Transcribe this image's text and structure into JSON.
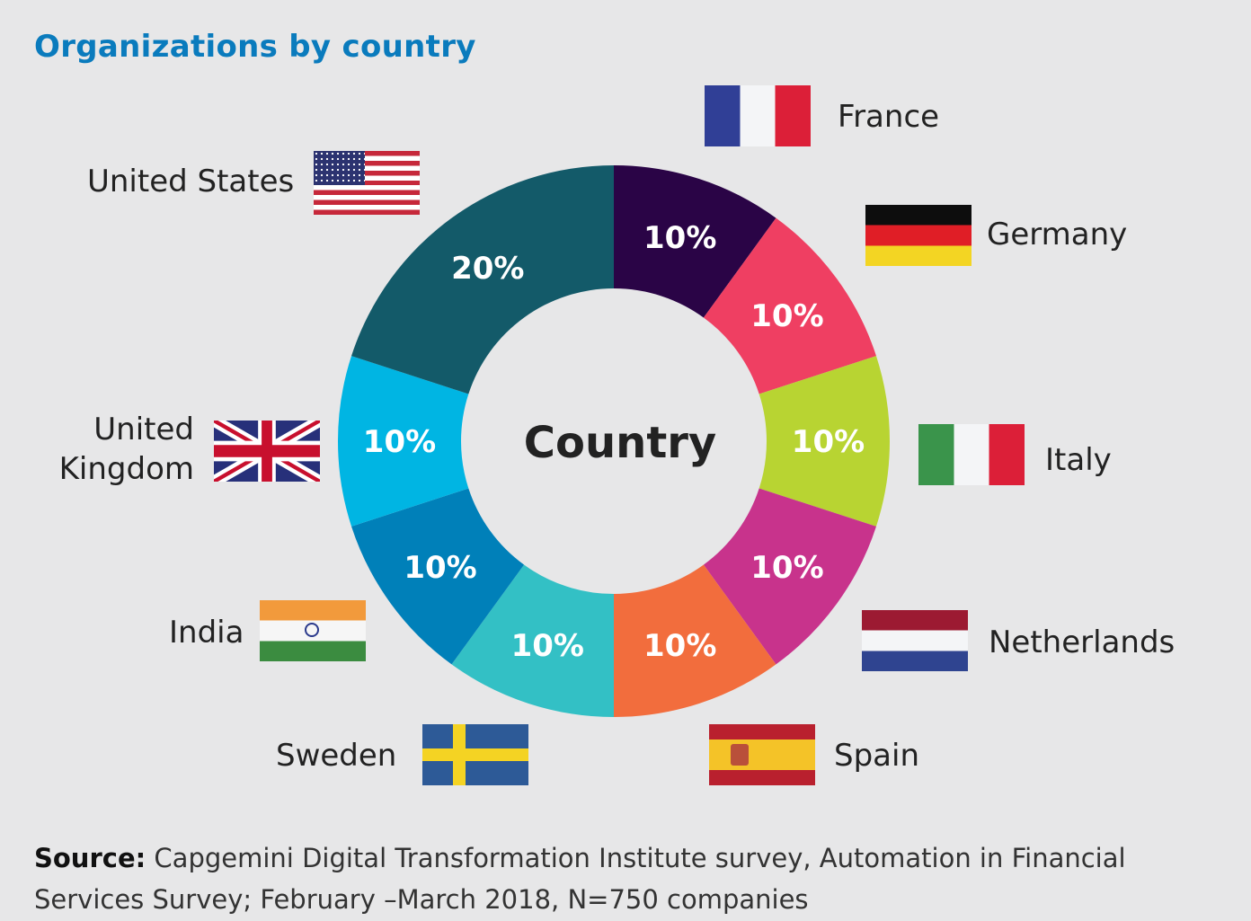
{
  "chart_data": {
    "type": "pie",
    "title": "Organizations by country",
    "center_label": "Country",
    "slices": [
      {
        "label": "France",
        "value": 10,
        "display": "10%",
        "color": "#2a0446"
      },
      {
        "label": "Germany",
        "value": 10,
        "display": "10%",
        "color": "#ef3f62"
      },
      {
        "label": "Italy",
        "value": 10,
        "display": "10%",
        "color": "#b8d432"
      },
      {
        "label": "Netherlands",
        "value": 10,
        "display": "10%",
        "color": "#c8338c"
      },
      {
        "label": "Spain",
        "value": 10,
        "display": "10%",
        "color": "#f26d3d"
      },
      {
        "label": "Sweden",
        "value": 10,
        "display": "10%",
        "color": "#33c0c5"
      },
      {
        "label": "India",
        "value": 10,
        "display": "10%",
        "color": "#0080b9"
      },
      {
        "label": "United Kingdom",
        "value": 10,
        "display": "10%",
        "color": "#00b5e3"
      },
      {
        "label": "United States",
        "value": 20,
        "display": "20%",
        "color": "#135a69"
      }
    ]
  },
  "labels": {
    "france": "France",
    "germany": "Germany",
    "italy": "Italy",
    "netherlands": "Netherlands",
    "spain": "Spain",
    "sweden": "Sweden",
    "india": "India",
    "uk_1": "United",
    "uk_2": "Kingdom",
    "us": "United States"
  },
  "source": {
    "label": "Source:",
    "text": " Capgemini Digital Transformation Institute survey, Automation in Financial Services Survey; February –March 2018, N=750 companies"
  }
}
